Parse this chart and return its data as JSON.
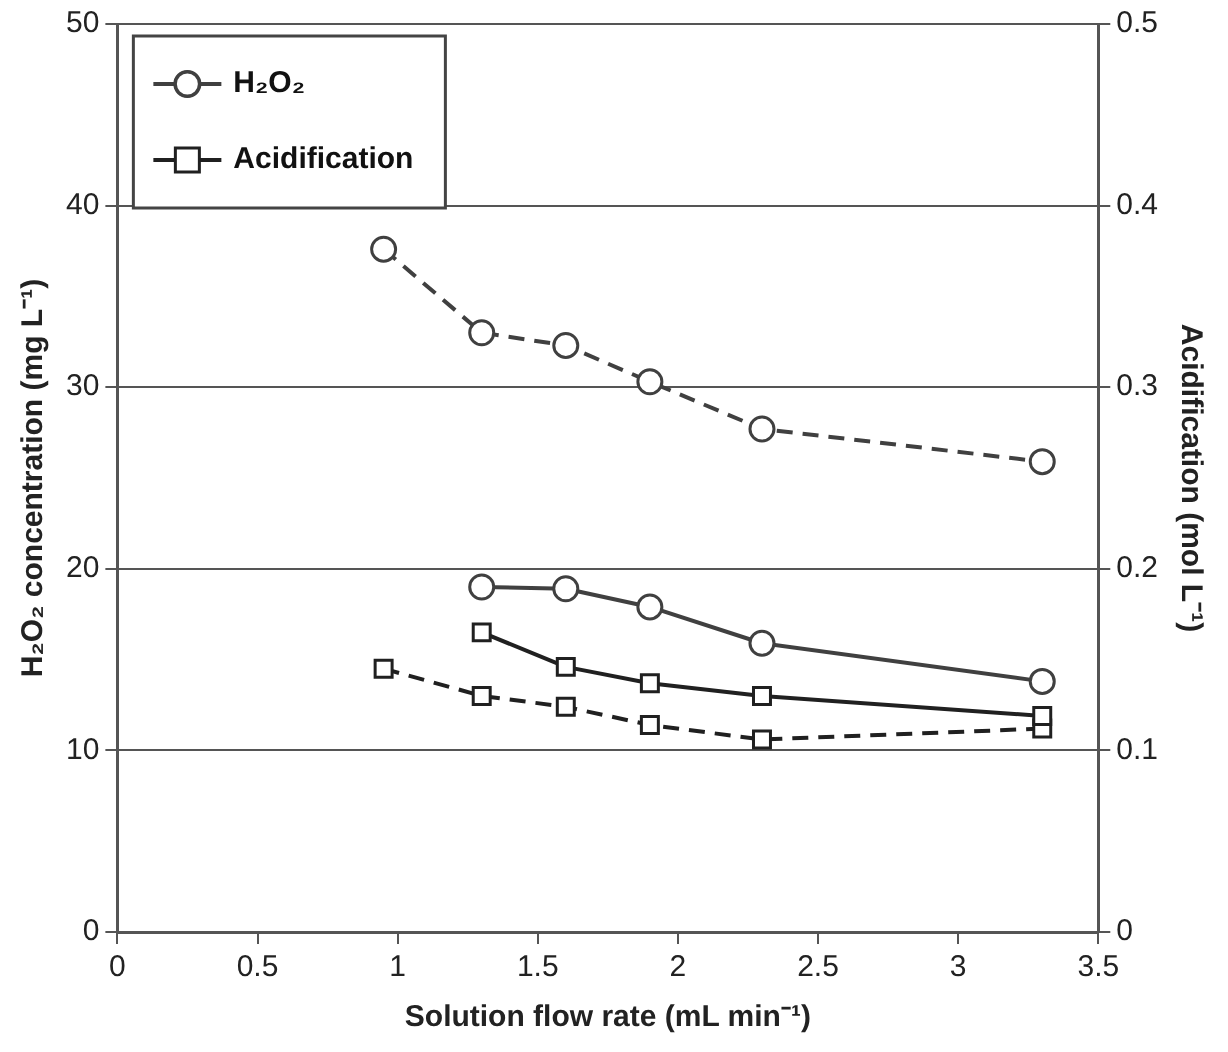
{
  "chart_data": {
    "type": "line",
    "xlabel": "Solution flow rate (mL min⁻¹)",
    "ylabel": "H₂O₂ concentration (mg L⁻¹)",
    "y2label": "Acidification (mol L⁻¹)",
    "xlim": [
      0,
      3.5
    ],
    "xticks": [
      0,
      0.5,
      1,
      1.5,
      2,
      2.5,
      3,
      3.5
    ],
    "ylim": [
      0,
      50
    ],
    "yticks": [
      0,
      10,
      20,
      30,
      40,
      50
    ],
    "y2lim": [
      0,
      0.5
    ],
    "y2ticks": [
      0,
      0.1,
      0.2,
      0.3,
      0.4,
      0.5
    ],
    "grid": "y",
    "legend": "top left",
    "series": [
      {
        "name": "H₂O₂",
        "color": "#404040",
        "marker": "circle",
        "line_style": "solid",
        "x": [
          1.3,
          1.6,
          1.9,
          2.3,
          3.3
        ],
        "values": [
          19.0,
          18.9,
          17.9,
          15.9,
          13.8
        ]
      },
      {
        "name": "Acidification",
        "color": "#202020",
        "marker": "square",
        "line_style": "solid",
        "axis": "y2",
        "x": [
          1.3,
          1.6,
          1.9,
          2.3,
          3.3
        ],
        "values": [
          0.165,
          0.146,
          0.137,
          0.13,
          0.119
        ]
      },
      {
        "color": "#404040",
        "marker": "circle",
        "line_style": "dashed",
        "x": [
          0.95,
          1.3,
          1.6,
          1.9,
          2.3,
          3.3
        ],
        "values": [
          37.6,
          33.0,
          32.3,
          30.3,
          27.7,
          25.9
        ]
      },
      {
        "color": "#202020",
        "marker": "square",
        "line_style": "dashed",
        "axis": "y2",
        "x": [
          0.95,
          1.3,
          1.6,
          1.9,
          2.3,
          3.3
        ],
        "values": [
          0.145,
          0.13,
          0.124,
          0.114,
          0.106,
          0.112
        ]
      }
    ]
  }
}
